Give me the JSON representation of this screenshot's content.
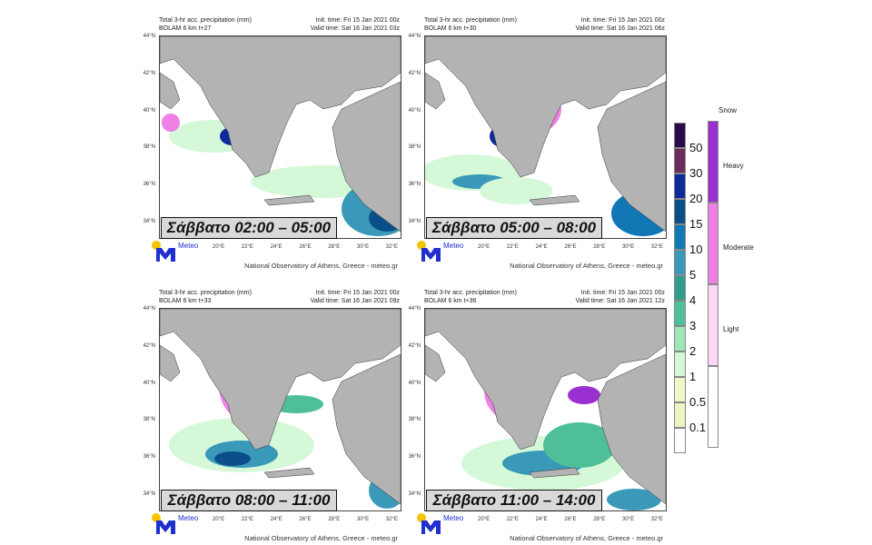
{
  "panels": [
    {
      "title": "Total 3-hr acc. precipitation (mm)",
      "model": "BOLAM 6 km t+27",
      "init": "Init. time: Fri 15 Jan 2021 00z",
      "valid": "Valid time: Sat 16 Jan 2021 03z",
      "label": "Σάββατο 02:00 – 05:00"
    },
    {
      "title": "Total 3-hr acc. precipitation (mm)",
      "model": "BOLAM 6 km t+30",
      "init": "Init. time: Fri 15 Jan 2021 00z",
      "valid": "Valid time: Sat 16 Jan 2021 06z",
      "label": "Σάββατο 05:00 – 08:00"
    },
    {
      "title": "Total 3-hr acc. precipitation (mm)",
      "model": "BOLAM 6 km t+33",
      "init": "Init. time: Fri 15 Jan 2021 00z",
      "valid": "Valid time: Sat 16 Jan 2021 09z",
      "label": "Σάββατο 08:00 – 11:00"
    },
    {
      "title": "Total 3-hr acc. precipitation (mm)",
      "model": "BOLAM 6 km t+36",
      "init": "Init. time: Fri 15 Jan 2021 00z",
      "valid": "Valid time: Sat 16 Jan 2021 12z",
      "label": "Σάββατο 11:00 – 14:00"
    }
  ],
  "lat_ticks": [
    "44°N",
    "42°N",
    "40°N",
    "38°N",
    "36°N",
    "34°N"
  ],
  "lon_ticks": [
    "20°E",
    "22°E",
    "24°E",
    "26°E",
    "28°E",
    "30°E",
    "32°E"
  ],
  "credit": "National Observatory of Athens, Greece - meteo.gr",
  "logo_text": "Meteo",
  "precip_legend": {
    "labels": [
      "50",
      "30",
      "20",
      "15",
      "10",
      "5",
      "4",
      "3",
      "2",
      "1",
      "0.5",
      "0.1"
    ],
    "colors": [
      "#2a0a4a",
      "#6b2c5c",
      "#0c2a9a",
      "#0b4f8a",
      "#1177b5",
      "#3a99b8",
      "#2f9f8c",
      "#4fbf9a",
      "#9ee8b8",
      "#d4f8d8",
      "#eef8c8",
      "#eef5c4",
      "#ffffff"
    ]
  },
  "snow_legend": {
    "title": "Snow",
    "labels": [
      "Heavy",
      "Moderate",
      "Light"
    ],
    "colors": [
      "#9b30d0",
      "#ee80e6",
      "#fbd6f6",
      "#ffffff"
    ]
  },
  "colors": {
    "land": "#b3b3b3",
    "sea": "#ffffff"
  }
}
